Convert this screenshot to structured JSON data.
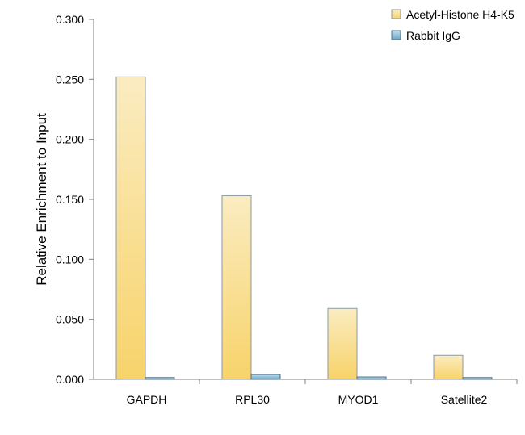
{
  "chart_data": {
    "type": "bar",
    "categories": [
      "GAPDH",
      "RPL30",
      "MYOD1",
      "Satellite2"
    ],
    "series": [
      {
        "name": "Acetyl-Histone H4-K5",
        "values": [
          0.252,
          0.153,
          0.059,
          0.02
        ],
        "color": "#f7d36a"
      },
      {
        "name": "Rabbit IgG",
        "values": [
          0.0015,
          0.004,
          0.002,
          0.0015
        ],
        "color": "#7fb2d3"
      }
    ],
    "ylabel": "Relative Enrichment to Input",
    "ylim": [
      0,
      0.3
    ],
    "yticks": [
      "0.000",
      "0.050",
      "0.100",
      "0.150",
      "0.200",
      "0.250",
      "0.300"
    ],
    "legend_position": "top-right",
    "grid": false
  }
}
